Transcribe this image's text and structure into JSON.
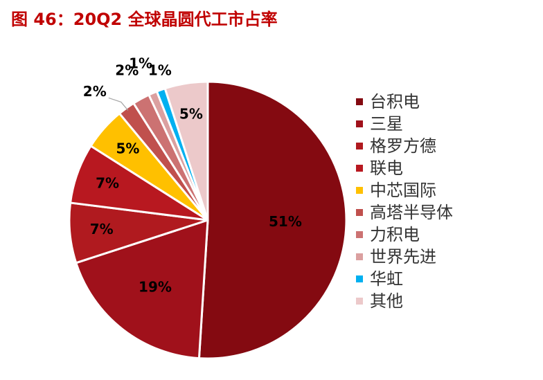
{
  "title": "图 46：20Q2 全球晶圆代工市占率",
  "chart_data": {
    "type": "pie",
    "categories": [
      "台积电",
      "三星",
      "格罗方德",
      "联电",
      "中芯国际",
      "高塔半导体",
      "力积电",
      "世界先进",
      "华虹",
      "其他"
    ],
    "values": [
      51,
      19,
      7,
      7,
      5,
      2,
      2,
      1,
      1,
      5
    ],
    "labels": [
      "51%",
      "19%",
      "7%",
      "7%",
      "5%",
      "2%",
      "2%",
      "1%",
      "1%",
      "5%"
    ],
    "colors": [
      "#840a11",
      "#a0111b",
      "#b01a1f",
      "#b81820",
      "#ffc000",
      "#c0504d",
      "#cc7272",
      "#dba0a0",
      "#00b0f0",
      "#ecc9ca"
    ],
    "legend_position": "right"
  }
}
